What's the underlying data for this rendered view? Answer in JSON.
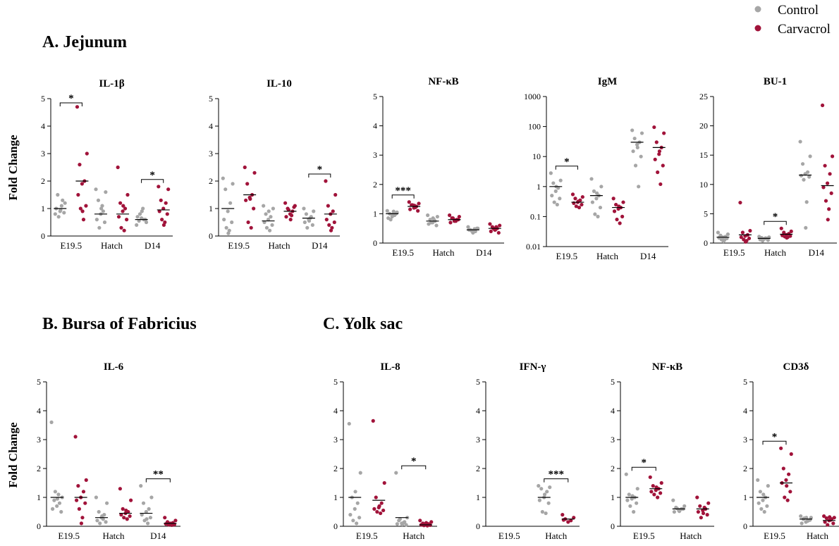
{
  "figure": {
    "sections": [
      {
        "id": "A",
        "title": "A. Jejunum"
      },
      {
        "id": "B",
        "title": "B.  Bursa of  Fabricius"
      },
      {
        "id": "C",
        "title": "C.  Yolk sac"
      }
    ],
    "row_ylabel": "Fold Change",
    "legend": [
      {
        "label": "Control",
        "color": "#a6a6a6"
      },
      {
        "label": "Carvacrol",
        "color": "#a1133a"
      }
    ]
  },
  "chart_data": [
    {
      "type": "scatter",
      "section": "A",
      "title": "IL-1β",
      "ylim": [
        0,
        5
      ],
      "yscale": "linear",
      "yticks": [
        "0",
        "1",
        "2",
        "3",
        "4",
        "5"
      ],
      "categories": [
        "E19.5",
        "Hatch",
        "D14"
      ],
      "series": [
        {
          "name": "Control",
          "points": [
            [
              0.8,
              1.2,
              1.5,
              1.3,
              0.9,
              1.0,
              0.85,
              0.7,
              1.1,
              0.95
            ],
            [
              1.7,
              1.6,
              1.3,
              0.9,
              0.8,
              0.6,
              0.5,
              0.3,
              1.1,
              1.0
            ],
            [
              0.4,
              0.5,
              0.55,
              0.6,
              0.65,
              0.7,
              0.6,
              0.8,
              1.0,
              0.9
            ]
          ],
          "means": [
            1.0,
            0.8,
            0.6
          ]
        },
        {
          "name": "Carvacrol",
          "points": [
            [
              4.7,
              3.0,
              2.6,
              2.0,
              1.9,
              1.5,
              1.1,
              1.0,
              0.6,
              0.9
            ],
            [
              2.5,
              1.5,
              1.2,
              1.0,
              0.9,
              0.7,
              0.6,
              0.3,
              0.2,
              1.1
            ],
            [
              1.8,
              1.7,
              1.3,
              1.2,
              1.0,
              0.9,
              0.8,
              0.6,
              0.5,
              0.4
            ]
          ],
          "means": [
            2.0,
            0.8,
            0.95
          ]
        }
      ],
      "significance": [
        {
          "category": "E19.5",
          "label": "*"
        },
        {
          "category": "D14",
          "label": "*"
        }
      ]
    },
    {
      "type": "scatter",
      "section": "A",
      "title": "IL-10",
      "ylim": [
        0,
        5
      ],
      "yscale": "linear",
      "yticks": [
        "0",
        "1",
        "2",
        "3",
        "4",
        "5"
      ],
      "categories": [
        "E19.5",
        "Hatch",
        "D14"
      ],
      "series": [
        {
          "name": "Control",
          "points": [
            [
              2.1,
              1.9,
              1.7,
              1.2,
              0.9,
              0.6,
              0.5,
              0.3,
              0.2,
              0.1
            ],
            [
              1.1,
              1.0,
              0.8,
              0.7,
              0.6,
              0.5,
              0.4,
              0.3,
              0.2,
              0.9
            ],
            [
              1.0,
              0.9,
              0.8,
              0.7,
              0.6,
              0.5,
              0.4,
              0.3,
              0.65,
              0.55
            ]
          ],
          "means": [
            1.0,
            0.55,
            0.65
          ]
        },
        {
          "name": "Carvacrol",
          "points": [
            [
              2.5,
              2.3,
              1.9,
              1.5,
              1.4,
              1.3,
              1.0,
              0.5,
              0.3,
              1.35
            ],
            [
              1.2,
              1.1,
              1.0,
              0.9,
              0.8,
              0.7,
              1.05,
              0.95,
              0.75,
              0.6
            ],
            [
              2.0,
              1.5,
              1.1,
              0.9,
              0.8,
              0.6,
              0.5,
              0.4,
              0.3,
              0.2
            ]
          ],
          "means": [
            1.5,
            0.9,
            0.8
          ]
        }
      ],
      "significance": [
        {
          "category": "D14",
          "label": "*"
        }
      ]
    },
    {
      "type": "scatter",
      "section": "A",
      "title": "NF-κB",
      "ylim": [
        0,
        5
      ],
      "yscale": "linear",
      "yticks": [
        "0",
        "1",
        "2",
        "3",
        "4",
        "5"
      ],
      "categories": [
        "E19.5",
        "Hatch",
        "D14"
      ],
      "series": [
        {
          "name": "Control",
          "points": [
            [
              1.1,
              1.05,
              1.0,
              0.95,
              0.9,
              0.85,
              1.0,
              0.8,
              1.08,
              0.98
            ],
            [
              0.95,
              0.9,
              0.8,
              0.75,
              0.7,
              0.65,
              0.6,
              0.7,
              0.8,
              0.85
            ],
            [
              0.55,
              0.5,
              0.45,
              0.4,
              0.35,
              0.45,
              0.5,
              0.42,
              0.48,
              0.38
            ]
          ],
          "means": [
            1.0,
            0.75,
            0.45
          ]
        },
        {
          "name": "Carvacrol",
          "points": [
            [
              1.4,
              1.35,
              1.3,
              1.25,
              1.2,
              1.15,
              1.1,
              1.3,
              1.22,
              1.28
            ],
            [
              0.95,
              0.9,
              0.85,
              0.8,
              0.75,
              0.7,
              0.8,
              0.85,
              0.75,
              0.78
            ],
            [
              0.65,
              0.6,
              0.55,
              0.5,
              0.45,
              0.4,
              0.35,
              0.5,
              0.55,
              0.45
            ]
          ],
          "means": [
            1.25,
            0.8,
            0.5
          ]
        }
      ],
      "significance": [
        {
          "category": "E19.5",
          "label": "***"
        }
      ]
    },
    {
      "type": "scatter",
      "section": "A",
      "title": "IgM",
      "ylim": [
        0.01,
        1000
      ],
      "yscale": "log",
      "yticks": [
        "0.01",
        "0.1",
        "1",
        "10",
        "100",
        "1000"
      ],
      "categories": [
        "E19.5",
        "Hatch",
        "D14"
      ],
      "series": [
        {
          "name": "Control",
          "points": [
            [
              2.8,
              1.6,
              1.3,
              0.9,
              0.7,
              0.5,
              0.4,
              0.3,
              0.25,
              1.0
            ],
            [
              1.8,
              1.0,
              0.7,
              0.5,
              0.4,
              0.3,
              0.2,
              0.12,
              0.1,
              0.6
            ],
            [
              75,
              60,
              40,
              30,
              25,
              15,
              10,
              5,
              1,
              20
            ]
          ],
          "means": [
            1.0,
            0.5,
            30
          ]
        },
        {
          "name": "Carvacrol",
          "points": [
            [
              0.55,
              0.45,
              0.4,
              0.35,
              0.3,
              0.28,
              0.25,
              0.22,
              0.2,
              0.32
            ],
            [
              0.4,
              0.3,
              0.25,
              0.2,
              0.18,
              0.15,
              0.1,
              0.08,
              0.06,
              0.22
            ],
            [
              95,
              60,
              30,
              20,
              12,
              8,
              5,
              3,
              1.2,
              15
            ]
          ],
          "means": [
            0.3,
            0.2,
            20
          ]
        }
      ],
      "significance": [
        {
          "category": "E19.5",
          "label": "*"
        }
      ]
    },
    {
      "type": "scatter",
      "section": "A",
      "title": "BU-1",
      "ylim": [
        0,
        25
      ],
      "yscale": "linear",
      "yticks": [
        "0",
        "5",
        "10",
        "15",
        "20",
        "25"
      ],
      "categories": [
        "E19.5",
        "Hatch",
        "D14"
      ],
      "series": [
        {
          "name": "Control",
          "points": [
            [
              1.8,
              1.5,
              1.3,
              1.1,
              1.0,
              0.9,
              0.8,
              0.6,
              0.5,
              0.3
            ],
            [
              1.1,
              1.0,
              0.9,
              0.8,
              0.7,
              0.6,
              0.5,
              0.4,
              0.85,
              0.75
            ],
            [
              17.3,
              14.8,
              13.5,
              12.1,
              11.8,
              11.5,
              11.3,
              10.8,
              7.0,
              2.6
            ]
          ],
          "means": [
            1.0,
            0.8,
            11.6
          ]
        },
        {
          "name": "Carvacrol",
          "points": [
            [
              6.9,
              2.1,
              1.8,
              1.4,
              1.2,
              1.0,
              0.8,
              0.6,
              0.4,
              0.2
            ],
            [
              2.5,
              2.0,
              1.8,
              1.6,
              1.4,
              1.3,
              1.2,
              1.1,
              1.0,
              0.9
            ],
            [
              23.5,
              14.8,
              13.2,
              11.8,
              10.2,
              9.5,
              8.5,
              7.2,
              5.8,
              4.0
            ]
          ],
          "means": [
            1.4,
            1.5,
            9.8
          ]
        }
      ],
      "significance": [
        {
          "category": "Hatch",
          "label": "*"
        }
      ]
    },
    {
      "type": "scatter",
      "section": "B",
      "title": "IL-6",
      "ylim": [
        0,
        5
      ],
      "yscale": "linear",
      "yticks": [
        "0",
        "1",
        "2",
        "3",
        "4",
        "5"
      ],
      "categories": [
        "E19.5",
        "Hatch",
        "D14"
      ],
      "series": [
        {
          "name": "Control",
          "points": [
            [
              3.6,
              1.0,
              0.9,
              0.8,
              0.7,
              0.6,
              0.5,
              1.2,
              1.1,
              0.95
            ],
            [
              1.0,
              0.8,
              0.5,
              0.4,
              0.3,
              0.2,
              0.15,
              0.1,
              0.25,
              0.35
            ],
            [
              1.4,
              1.0,
              0.8,
              0.6,
              0.5,
              0.4,
              0.3,
              0.2,
              0.1,
              0.25
            ]
          ],
          "means": [
            1.0,
            0.3,
            0.45
          ]
        },
        {
          "name": "Carvacrol",
          "points": [
            [
              3.1,
              1.6,
              1.4,
              1.2,
              1.0,
              0.9,
              0.8,
              0.6,
              0.3,
              0.1
            ],
            [
              1.3,
              0.9,
              0.6,
              0.5,
              0.45,
              0.4,
              0.35,
              0.3,
              0.25,
              0.55
            ],
            [
              0.3,
              0.2,
              0.15,
              0.12,
              0.1,
              0.08,
              0.06,
              0.05,
              0.04,
              0.09
            ]
          ],
          "means": [
            1.0,
            0.45,
            0.1
          ]
        }
      ],
      "significance": [
        {
          "category": "D14",
          "label": "**"
        }
      ]
    },
    {
      "type": "scatter",
      "section": "C",
      "title": "IL-8",
      "ylim": [
        0,
        5
      ],
      "yscale": "linear",
      "yticks": [
        "0",
        "1",
        "2",
        "3",
        "4",
        "5"
      ],
      "categories": [
        "E19.5",
        "Hatch"
      ],
      "series": [
        {
          "name": "Control",
          "points": [
            [
              3.55,
              1.85,
              1.0,
              0.8,
              0.6,
              0.4,
              0.3,
              0.2,
              0.1,
              1.2
            ],
            [
              1.85,
              0.3,
              0.2,
              0.15,
              0.1,
              0.08,
              0.05,
              0.25,
              0.12,
              0.06
            ]
          ],
          "means": [
            1.0,
            0.3
          ]
        },
        {
          "name": "Carvacrol",
          "points": [
            [
              3.65,
              1.5,
              1.0,
              0.8,
              0.65,
              0.6,
              0.55,
              0.5,
              0.45,
              0.7
            ],
            [
              0.2,
              0.15,
              0.1,
              0.08,
              0.06,
              0.05,
              0.04,
              0.03,
              0.02,
              0.12
            ]
          ],
          "means": [
            0.9,
            0.05
          ]
        }
      ],
      "significance": [
        {
          "category": "Hatch",
          "label": "*"
        }
      ]
    },
    {
      "type": "scatter",
      "section": "C",
      "title": "IFN-γ",
      "ylim": [
        0,
        5
      ],
      "yscale": "linear",
      "yticks": [
        "0",
        "1",
        "2",
        "3",
        "4",
        "5"
      ],
      "categories": [
        "E19.5",
        "Hatch"
      ],
      "series": [
        {
          "name": "Control",
          "points": [
            [],
            [
              1.4,
              1.35,
              1.3,
              1.2,
              1.0,
              0.9,
              0.8,
              0.5,
              0.45,
              1.1
            ]
          ],
          "means": [
            null,
            1.0
          ]
        },
        {
          "name": "Carvacrol",
          "points": [
            [],
            [
              0.4,
              0.3,
              0.25,
              0.2,
              0.15,
              0.22
            ]
          ],
          "means": [
            null,
            0.25
          ]
        }
      ],
      "significance": [
        {
          "category": "Hatch",
          "label": "***"
        }
      ]
    },
    {
      "type": "scatter",
      "section": "C",
      "title": "NF-κB",
      "ylim": [
        0,
        5
      ],
      "yscale": "linear",
      "yticks": [
        "0",
        "1",
        "2",
        "3",
        "4",
        "5"
      ],
      "categories": [
        "E19.5",
        "Hatch"
      ],
      "series": [
        {
          "name": "Control",
          "points": [
            [
              1.8,
              1.3,
              1.1,
              1.0,
              0.95,
              0.9,
              0.8,
              0.7,
              0.5,
              1.05
            ],
            [
              0.9,
              0.7,
              0.65,
              0.6,
              0.55,
              0.5,
              0.6,
              0.62,
              0.58,
              0.52
            ]
          ],
          "means": [
            1.0,
            0.6
          ]
        },
        {
          "name": "Carvacrol",
          "points": [
            [
              1.7,
              1.5,
              1.4,
              1.3,
              1.25,
              1.2,
              1.15,
              1.1,
              1.0,
              1.35
            ],
            [
              1.0,
              0.8,
              0.7,
              0.6,
              0.55,
              0.5,
              0.4,
              0.3,
              0.65,
              0.45
            ]
          ],
          "means": [
            1.3,
            0.6
          ]
        }
      ],
      "significance": [
        {
          "category": "E19.5",
          "label": "*"
        }
      ]
    },
    {
      "type": "scatter",
      "section": "C",
      "title": "CD3δ",
      "ylim": [
        0,
        5
      ],
      "yscale": "linear",
      "yticks": [
        "0",
        "1",
        "2",
        "3",
        "4",
        "5"
      ],
      "categories": [
        "E19.5",
        "Hatch"
      ],
      "series": [
        {
          "name": "Control",
          "points": [
            [
              1.6,
              1.4,
              1.2,
              1.0,
              0.9,
              0.8,
              0.7,
              0.6,
              0.5,
              1.1
            ],
            [
              0.35,
              0.3,
              0.25,
              0.2,
              0.15,
              0.1,
              0.22,
              0.28,
              0.18,
              0.3
            ]
          ],
          "means": [
            1.0,
            0.25
          ]
        },
        {
          "name": "Carvacrol",
          "points": [
            [
              2.7,
              2.5,
              2.0,
              1.8,
              1.6,
              1.5,
              1.2,
              1.0,
              0.9,
              1.4
            ],
            [
              0.35,
              0.3,
              0.28,
              0.25,
              0.2,
              0.15,
              0.1,
              0.05,
              0.22,
              0.32
            ]
          ],
          "means": [
            1.5,
            0.2
          ]
        }
      ],
      "significance": [
        {
          "category": "E19.5",
          "label": "*"
        }
      ]
    }
  ]
}
